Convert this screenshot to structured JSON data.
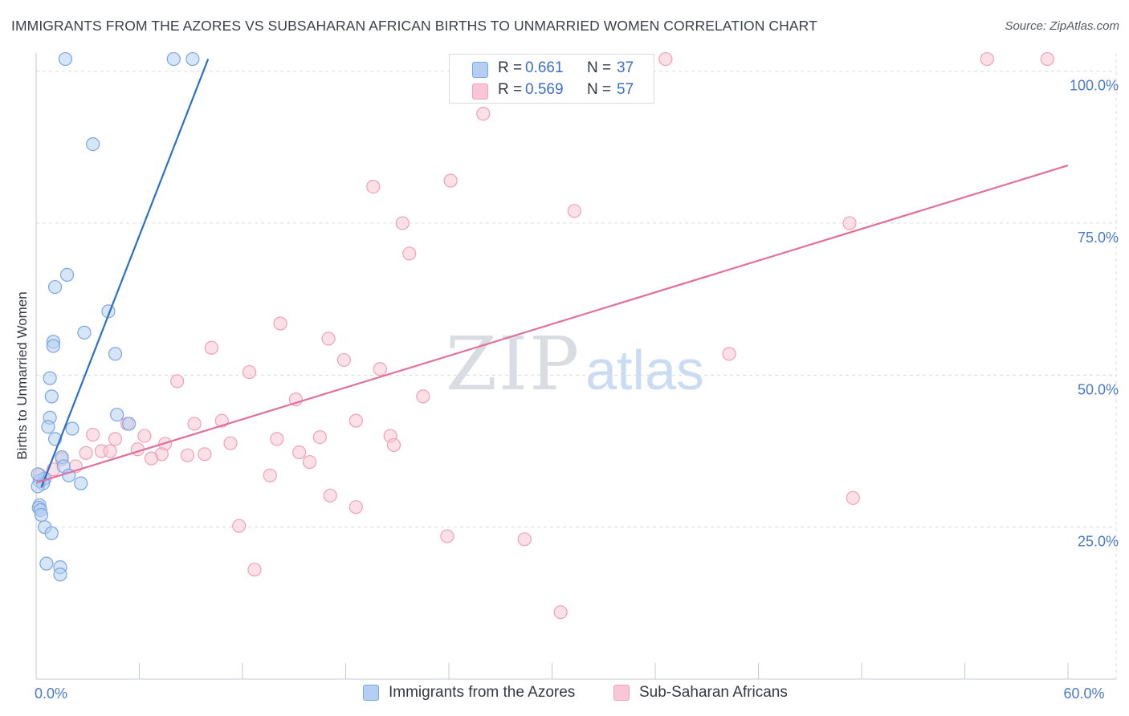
{
  "title": "IMMIGRANTS FROM THE AZORES VS SUBSAHARAN AFRICAN BIRTHS TO UNMARRIED WOMEN CORRELATION CHART",
  "source": "Source: ZipAtlas.com",
  "watermark": {
    "zip": "ZIP",
    "atlas": "atlas"
  },
  "legend": {
    "r_label": "R =",
    "n_label": "N =",
    "rows": [
      {
        "series": "Immigrants from the Azores",
        "r": "0.661",
        "n": "37"
      },
      {
        "series": "Sub-Saharan Africans",
        "r": "0.569",
        "n": "57"
      }
    ]
  },
  "colors": {
    "blue_fill": "#b5cff2",
    "blue_stroke": "#7aa6e0",
    "blue_line": "#2b6fc9",
    "pink_fill": "#f8c6d5",
    "pink_stroke": "#eea1b9",
    "pink_line": "#e0709a",
    "grid": "#d8dbe0",
    "tick_text": "#4a7ac7"
  },
  "chart_data": {
    "type": "scatter",
    "title": "IMMIGRANTS FROM THE AZORES VS SUBSAHARAN AFRICAN BIRTHS TO UNMARRIED WOMEN CORRELATION CHART",
    "xlabel": "",
    "ylabel": "Births to Unmarried Women",
    "xlim": [
      0,
      60
    ],
    "ylim": [
      0,
      103
    ],
    "x_tick_labels": [
      {
        "value": 0,
        "label": "0.0%"
      },
      {
        "value": 60,
        "label": "60.0%"
      }
    ],
    "x_minor_ticks": [
      0,
      6,
      12,
      18,
      24,
      30,
      36,
      42,
      48,
      54,
      60
    ],
    "y_ticks": [
      {
        "value": 25,
        "label": "25.0%"
      },
      {
        "value": 50,
        "label": "50.0%"
      },
      {
        "value": 75,
        "label": "75.0%"
      },
      {
        "value": 100,
        "label": "100.0%"
      }
    ],
    "grid": true,
    "legend_position": "top-center",
    "series": [
      {
        "name": "Immigrants from the Azores",
        "color": "blue",
        "trend": {
          "x": [
            0.3,
            10.0
          ],
          "y": [
            31.5,
            102.0
          ]
        },
        "points": [
          [
            1.7,
            102
          ],
          [
            8.0,
            102
          ],
          [
            9.1,
            102
          ],
          [
            3.3,
            88
          ],
          [
            1.8,
            66.5
          ],
          [
            1.1,
            64.5
          ],
          [
            4.2,
            60.5
          ],
          [
            2.8,
            57
          ],
          [
            1.0,
            55.5
          ],
          [
            1.0,
            54.8
          ],
          [
            4.6,
            53.5
          ],
          [
            0.8,
            49.5
          ],
          [
            0.9,
            46.5
          ],
          [
            0.8,
            43.0
          ],
          [
            0.7,
            41.5
          ],
          [
            4.7,
            43.5
          ],
          [
            5.4,
            42
          ],
          [
            2.1,
            41.2
          ],
          [
            1.1,
            39.5
          ],
          [
            1.5,
            36.5
          ],
          [
            1.6,
            35.0
          ],
          [
            1.9,
            33.5
          ],
          [
            2.6,
            32.2
          ],
          [
            0.5,
            33.0
          ],
          [
            0.2,
            32.6
          ],
          [
            0.4,
            32.2
          ],
          [
            0.2,
            28.6
          ],
          [
            0.15,
            28.2
          ],
          [
            0.25,
            27.8
          ],
          [
            0.3,
            27.0
          ],
          [
            0.5,
            25.0
          ],
          [
            0.9,
            24.0
          ],
          [
            0.6,
            19.0
          ],
          [
            1.4,
            18.4
          ],
          [
            1.4,
            17.2
          ],
          [
            0.1,
            31.7
          ],
          [
            0.1,
            33.7
          ]
        ]
      },
      {
        "name": "Sub-Saharan Africans",
        "color": "pink",
        "trend": {
          "x": [
            0.0,
            60.0
          ],
          "y": [
            32.3,
            84.5
          ]
        },
        "points": [
          [
            36.6,
            102
          ],
          [
            55.3,
            102
          ],
          [
            58.8,
            102
          ],
          [
            26.0,
            93
          ],
          [
            24.1,
            82
          ],
          [
            19.6,
            81
          ],
          [
            31.3,
            77
          ],
          [
            21.3,
            75
          ],
          [
            21.7,
            70
          ],
          [
            47.3,
            75
          ],
          [
            14.2,
            58.5
          ],
          [
            17.0,
            56
          ],
          [
            10.2,
            54.5
          ],
          [
            17.9,
            52.5
          ],
          [
            40.3,
            53.5
          ],
          [
            20.0,
            51
          ],
          [
            12.4,
            50.5
          ],
          [
            8.2,
            49
          ],
          [
            15.1,
            46
          ],
          [
            22.5,
            46.5
          ],
          [
            10.8,
            42.5
          ],
          [
            9.2,
            42
          ],
          [
            18.6,
            42.5
          ],
          [
            5.3,
            42
          ],
          [
            6.3,
            40
          ],
          [
            3.3,
            40.2
          ],
          [
            4.6,
            39.5
          ],
          [
            7.5,
            38.7
          ],
          [
            11.3,
            38.8
          ],
          [
            14.0,
            39.5
          ],
          [
            16.5,
            39.8
          ],
          [
            20.6,
            40
          ],
          [
            20.8,
            38.5
          ],
          [
            3.8,
            37.5
          ],
          [
            4.3,
            37.5
          ],
          [
            5.9,
            37.8
          ],
          [
            7.3,
            37
          ],
          [
            9.8,
            37
          ],
          [
            8.8,
            36.8
          ],
          [
            6.7,
            36.3
          ],
          [
            15.3,
            37.3
          ],
          [
            15.9,
            35.7
          ],
          [
            2.9,
            37.2
          ],
          [
            1.5,
            36.2
          ],
          [
            2.3,
            35.0
          ],
          [
            1.0,
            34.5
          ],
          [
            0.4,
            32.9
          ],
          [
            13.6,
            33.5
          ],
          [
            17.1,
            30.2
          ],
          [
            18.6,
            28.3
          ],
          [
            11.8,
            25.2
          ],
          [
            47.5,
            29.8
          ],
          [
            23.9,
            23.5
          ],
          [
            28.4,
            23.0
          ],
          [
            12.7,
            18.0
          ],
          [
            30.5,
            11.0
          ],
          [
            0.2,
            33.6
          ]
        ]
      }
    ]
  }
}
